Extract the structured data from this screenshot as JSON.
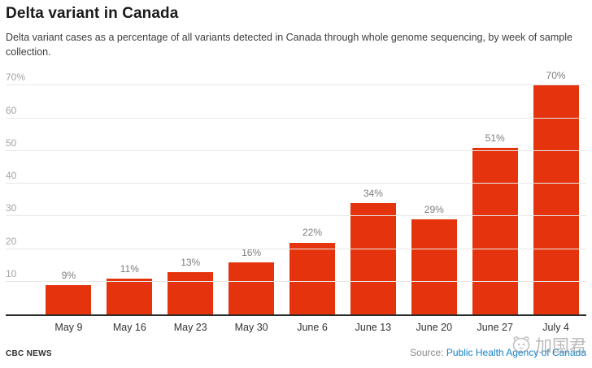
{
  "header": {
    "title": "Delta variant in Canada",
    "subtitle": "Delta variant cases as a percentage of all variants detected in Canada through whole genome sequencing, by week of sample collection."
  },
  "chart_data": {
    "type": "bar",
    "title": "Delta variant in Canada",
    "xlabel": "",
    "ylabel": "",
    "categories": [
      "May 9",
      "May 16",
      "May 23",
      "May 30",
      "June 6",
      "June 13",
      "June 20",
      "June 27",
      "July 4"
    ],
    "values": [
      9,
      11,
      13,
      16,
      22,
      34,
      29,
      51,
      70
    ],
    "bar_labels": [
      "9%",
      "11%",
      "13%",
      "16%",
      "22%",
      "34%",
      "29%",
      "51%",
      "70%"
    ],
    "ylim": [
      0,
      70
    ],
    "yticks": [
      10,
      20,
      30,
      40,
      50,
      60,
      70
    ],
    "ytick_labels": [
      "10",
      "20",
      "30",
      "40",
      "50",
      "60",
      "70%"
    ],
    "grid": true,
    "legend": false,
    "bar_color": "#e5330d"
  },
  "footer": {
    "brand": "CBC NEWS",
    "source_prefix": "Source:",
    "source_link": "Public Health Agency of Canada"
  },
  "watermark": {
    "icon": "face-logo-icon",
    "text": "加国君"
  },
  "colors": {
    "bar": "#e5330d",
    "link": "#1482c8",
    "gridline": "#e7e7e7",
    "ytick_label": "#a4a4a4",
    "bar_value_label": "#7d7d7d",
    "xtick_label": "#333333",
    "axis_line": "#2b2b2b",
    "watermark": "#8f8f8f"
  }
}
